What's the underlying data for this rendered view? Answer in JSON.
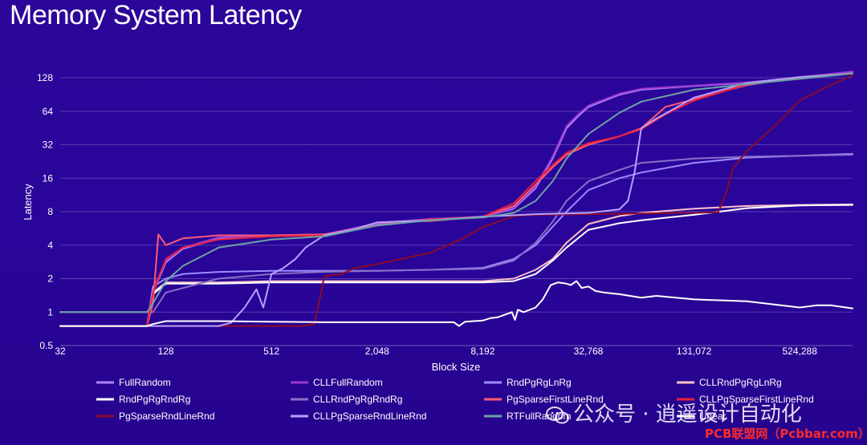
{
  "chart_data": {
    "type": "line",
    "title": "Memory System Latency",
    "xlabel": "Block Size",
    "ylabel": "Latency",
    "x_scale": "log2",
    "y_scale": "log2",
    "xlim": [
      32,
      1048576
    ],
    "ylim": [
      0.5,
      128
    ],
    "x_ticks": [
      32,
      128,
      512,
      2048,
      8192,
      32768,
      131072,
      524288
    ],
    "x_tick_labels": [
      "32",
      "128",
      "512",
      "2,048",
      "8,192",
      "32,768",
      "131,072",
      "524,288"
    ],
    "y_ticks": [
      0.5,
      1,
      2,
      4,
      8,
      16,
      32,
      64,
      128
    ],
    "y_tick_labels": [
      "0.5",
      "1",
      "2",
      "4",
      "8",
      "16",
      "32",
      "64",
      "128"
    ],
    "grid": "horizontal",
    "legend_position": "bottom",
    "series": [
      {
        "name": "FullRandom",
        "color": "#b083ff",
        "x": [
          32,
          100,
          108,
          128,
          160,
          256,
          512,
          1024,
          2048,
          4096,
          8192,
          12288,
          16384,
          20480,
          24576,
          28672,
          32768,
          49152,
          65536,
          131072,
          262144,
          524288,
          1048576
        ],
        "y": [
          0.75,
          0.75,
          1.5,
          2.8,
          3.7,
          4.6,
          4.8,
          4.9,
          6.2,
          6.8,
          7.2,
          8.5,
          13,
          24,
          45,
          58,
          70,
          90,
          100,
          108,
          115,
          128,
          145
        ]
      },
      {
        "name": "CLLFullRandom",
        "color": "#9b3ad0",
        "x": [
          32,
          100,
          108,
          128,
          160,
          256,
          512,
          1024,
          2048,
          4096,
          8192,
          12288,
          16384,
          20480,
          24576,
          28672,
          32768,
          49152,
          65536,
          131072,
          262144,
          524288,
          1048576
        ],
        "y": [
          0.75,
          0.75,
          1.6,
          2.9,
          3.8,
          4.7,
          4.9,
          5.0,
          6.3,
          6.9,
          7.2,
          8.7,
          13.5,
          25,
          47,
          60,
          72,
          92,
          102,
          109,
          116,
          129,
          146
        ]
      },
      {
        "name": "RndPgRgLnRg",
        "color": "#9c8cff",
        "x": [
          32,
          100,
          108,
          128,
          160,
          256,
          512,
          1024,
          2048,
          4096,
          8192,
          12288,
          16384,
          24576,
          32768,
          49152,
          65536,
          131072,
          262144,
          524288,
          1048576
        ],
        "y": [
          0.75,
          0.75,
          1.7,
          2.0,
          2.2,
          2.3,
          2.35,
          2.35,
          2.35,
          2.4,
          2.5,
          3.0,
          4.0,
          8.0,
          12.5,
          16,
          18,
          22,
          24.5,
          25.5,
          26.5
        ]
      },
      {
        "name": "CLLRndPgRgLnRg",
        "color": "#ffc0c8",
        "x": [
          32,
          100,
          108,
          128,
          256,
          512,
          1024,
          2048,
          4096,
          8192,
          12288,
          16384,
          20480,
          24576,
          32768,
          49152,
          65536,
          131072,
          262144,
          524288,
          1048576
        ],
        "y": [
          0.75,
          0.75,
          1.5,
          1.85,
          1.85,
          1.9,
          1.9,
          1.9,
          1.9,
          1.9,
          2.0,
          2.4,
          3.0,
          4.2,
          6.2,
          7.3,
          7.8,
          8.5,
          9.0,
          9.2,
          9.3
        ]
      },
      {
        "name": "RndPgRgRndRg",
        "color": "#ffffff",
        "x": [
          32,
          100,
          108,
          128,
          160,
          256,
          512,
          1024,
          2048,
          4096,
          8192,
          12288,
          16384,
          20480,
          24576,
          32768,
          49152,
          65536,
          131072,
          262144,
          524288,
          1048576
        ],
        "y": [
          0.75,
          0.75,
          1.45,
          1.8,
          1.8,
          1.8,
          1.85,
          1.85,
          1.85,
          1.85,
          1.85,
          1.9,
          2.2,
          2.9,
          3.8,
          5.5,
          6.3,
          6.7,
          7.5,
          8.6,
          9.1,
          9.2
        ]
      },
      {
        "name": "CLLRndPgRgRndRg",
        "color": "#8a6fc8",
        "x": [
          32,
          100,
          108,
          128,
          256,
          512,
          1024,
          2048,
          4096,
          8192,
          12288,
          16384,
          20480,
          24576,
          32768,
          49152,
          65536,
          131072,
          262144,
          524288,
          1048576
        ],
        "y": [
          1.0,
          1.0,
          1.0,
          1.5,
          2.0,
          2.2,
          2.3,
          2.35,
          2.4,
          2.45,
          2.9,
          4.2,
          6.5,
          10,
          15,
          19,
          22,
          24,
          25,
          25.5,
          26
        ]
      },
      {
        "name": "PgSparseFirstLineRnd",
        "color": "#ff5a78",
        "x": [
          32,
          100,
          108,
          116,
          128,
          160,
          256,
          512,
          1024,
          1536,
          2048,
          4096,
          8192,
          12288,
          16384,
          20480,
          24576,
          32768,
          49152,
          65536,
          90000,
          131072,
          262144,
          524288,
          1048576
        ],
        "y": [
          0.75,
          0.75,
          1.2,
          5.0,
          4.0,
          4.6,
          4.9,
          4.9,
          5.0,
          5.6,
          6.4,
          6.6,
          7.2,
          9,
          14,
          20,
          26,
          32,
          38,
          45,
          70,
          82,
          110,
          130,
          140
        ]
      },
      {
        "name": "CLLPgSparseFirstLineRnd",
        "color": "#e8203c",
        "x": [
          32,
          100,
          108,
          128,
          160,
          256,
          512,
          1024,
          2048,
          4096,
          8192,
          12288,
          16384,
          20480,
          24576,
          32768,
          49152,
          65536,
          90000,
          131072,
          262144,
          524288,
          1048576
        ],
        "y": [
          0.75,
          0.75,
          1.5,
          3.0,
          3.8,
          4.5,
          4.8,
          4.9,
          6.0,
          6.8,
          7.2,
          9.5,
          15,
          21,
          27,
          33,
          38,
          44,
          60,
          80,
          112,
          130,
          140
        ]
      },
      {
        "name": "PgSparseRndLineRnd",
        "color": "#8a0a2a",
        "x": [
          32,
          100,
          256,
          512,
          768,
          900,
          1024,
          1280,
          1536,
          2048,
          3072,
          4096,
          6144,
          8192,
          12288,
          16384,
          32768,
          65536,
          131072,
          180000,
          200000,
          220000,
          262144,
          393216,
          524288,
          786432,
          1048576
        ],
        "y": [
          0.75,
          0.75,
          0.75,
          0.75,
          0.75,
          0.78,
          2.1,
          2.2,
          2.5,
          2.7,
          3.1,
          3.4,
          4.5,
          5.8,
          7.3,
          7.5,
          7.6,
          7.7,
          7.8,
          7.9,
          12,
          20,
          28,
          50,
          80,
          110,
          135
        ]
      },
      {
        "name": "CLLPgSparseRndLineRnd",
        "color": "#b8a0ff",
        "x": [
          32,
          100,
          256,
          300,
          360,
          420,
          460,
          512,
          600,
          700,
          800,
          900,
          1024,
          1536,
          2048,
          4096,
          8192,
          16384,
          32768,
          49152,
          55000,
          60000,
          65536,
          80000,
          131072,
          262144,
          524288,
          1048576
        ],
        "y": [
          0.75,
          0.75,
          0.75,
          0.8,
          1.1,
          1.6,
          1.1,
          2.2,
          2.5,
          3.0,
          3.8,
          4.3,
          4.9,
          5.6,
          6.4,
          6.7,
          7.2,
          7.6,
          7.8,
          8.4,
          10,
          18,
          45,
          55,
          85,
          115,
          130,
          140
        ]
      },
      {
        "name": "RTFullRandom",
        "color": "#6aa4a4",
        "x": [
          32,
          100,
          108,
          128,
          160,
          256,
          512,
          1024,
          2048,
          4096,
          8192,
          12288,
          16384,
          20480,
          24576,
          32768,
          49152,
          65536,
          131072,
          262144,
          524288,
          1048576
        ],
        "y": [
          1.0,
          1.0,
          1.2,
          1.9,
          2.6,
          3.8,
          4.5,
          4.8,
          6.0,
          6.7,
          7.1,
          7.8,
          10,
          15,
          24,
          40,
          62,
          78,
          100,
          112,
          125,
          140
        ]
      },
      {
        "name": "Linear",
        "color": "#ffffff",
        "x": [
          32,
          100,
          108,
          128,
          256,
          512,
          1024,
          2048,
          4096,
          5600,
          6000,
          6500,
          8192,
          9000,
          10000,
          11000,
          12000,
          12500,
          13000,
          14000,
          16384,
          18000,
          20000,
          22000,
          24576,
          26000,
          28000,
          30000,
          32768,
          36000,
          40000,
          49152,
          65536,
          80000,
          131072,
          262144,
          524288,
          655360,
          786432,
          1048576
        ],
        "y": [
          0.75,
          0.75,
          0.78,
          0.83,
          0.83,
          0.82,
          0.81,
          0.81,
          0.81,
          0.81,
          0.75,
          0.82,
          0.84,
          0.88,
          0.9,
          0.95,
          1.0,
          0.85,
          1.05,
          1.0,
          1.1,
          1.3,
          1.75,
          1.85,
          1.8,
          1.75,
          1.9,
          1.65,
          1.7,
          1.55,
          1.5,
          1.45,
          1.35,
          1.4,
          1.3,
          1.25,
          1.1,
          1.15,
          1.15,
          1.08
        ]
      }
    ]
  },
  "watermark": {
    "text": "公众号 · 逍遥设计自动化",
    "site": "PCB联盟网（Pcbbar.com）"
  },
  "icons": {
    "watermark_icon": "wechat-icon"
  }
}
